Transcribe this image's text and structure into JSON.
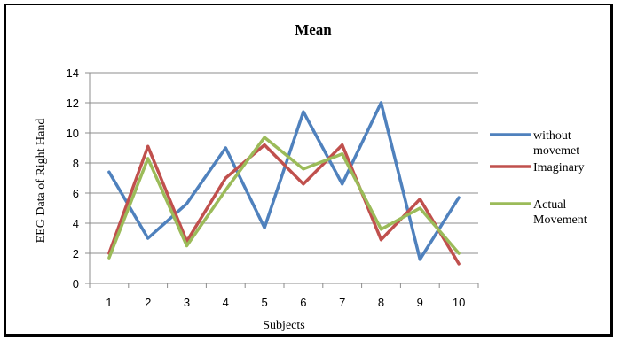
{
  "chart_data": {
    "type": "line",
    "title": "Mean",
    "xlabel": "Subjects",
    "ylabel": "EEG Data of Right Hand",
    "categories": [
      "1",
      "2",
      "3",
      "4",
      "5",
      "6",
      "7",
      "8",
      "9",
      "10"
    ],
    "ylim": [
      0,
      14
    ],
    "yticks": [
      "0",
      "2",
      "4",
      "6",
      "8",
      "10",
      "12",
      "14"
    ],
    "grid": true,
    "legend_position": "right",
    "series": [
      {
        "name": "without movemet",
        "legend_lines": [
          "without",
          "movemet"
        ],
        "color": "#4F81BD",
        "values": [
          7.4,
          3.0,
          5.3,
          9.0,
          3.7,
          11.4,
          6.6,
          12.0,
          1.6,
          5.7
        ]
      },
      {
        "name": "Imaginary",
        "legend_lines": [
          "Imaginary"
        ],
        "color": "#C0504D",
        "values": [
          2.0,
          9.1,
          2.8,
          7.0,
          9.2,
          6.6,
          9.2,
          2.9,
          5.6,
          1.3
        ]
      },
      {
        "name": "Actual Movement",
        "legend_lines": [
          "Actual",
          "Movement"
        ],
        "color": "#9BBB59",
        "values": [
          1.7,
          8.3,
          2.5,
          6.2,
          9.7,
          7.6,
          8.6,
          3.6,
          5.0,
          2.0
        ]
      }
    ]
  }
}
